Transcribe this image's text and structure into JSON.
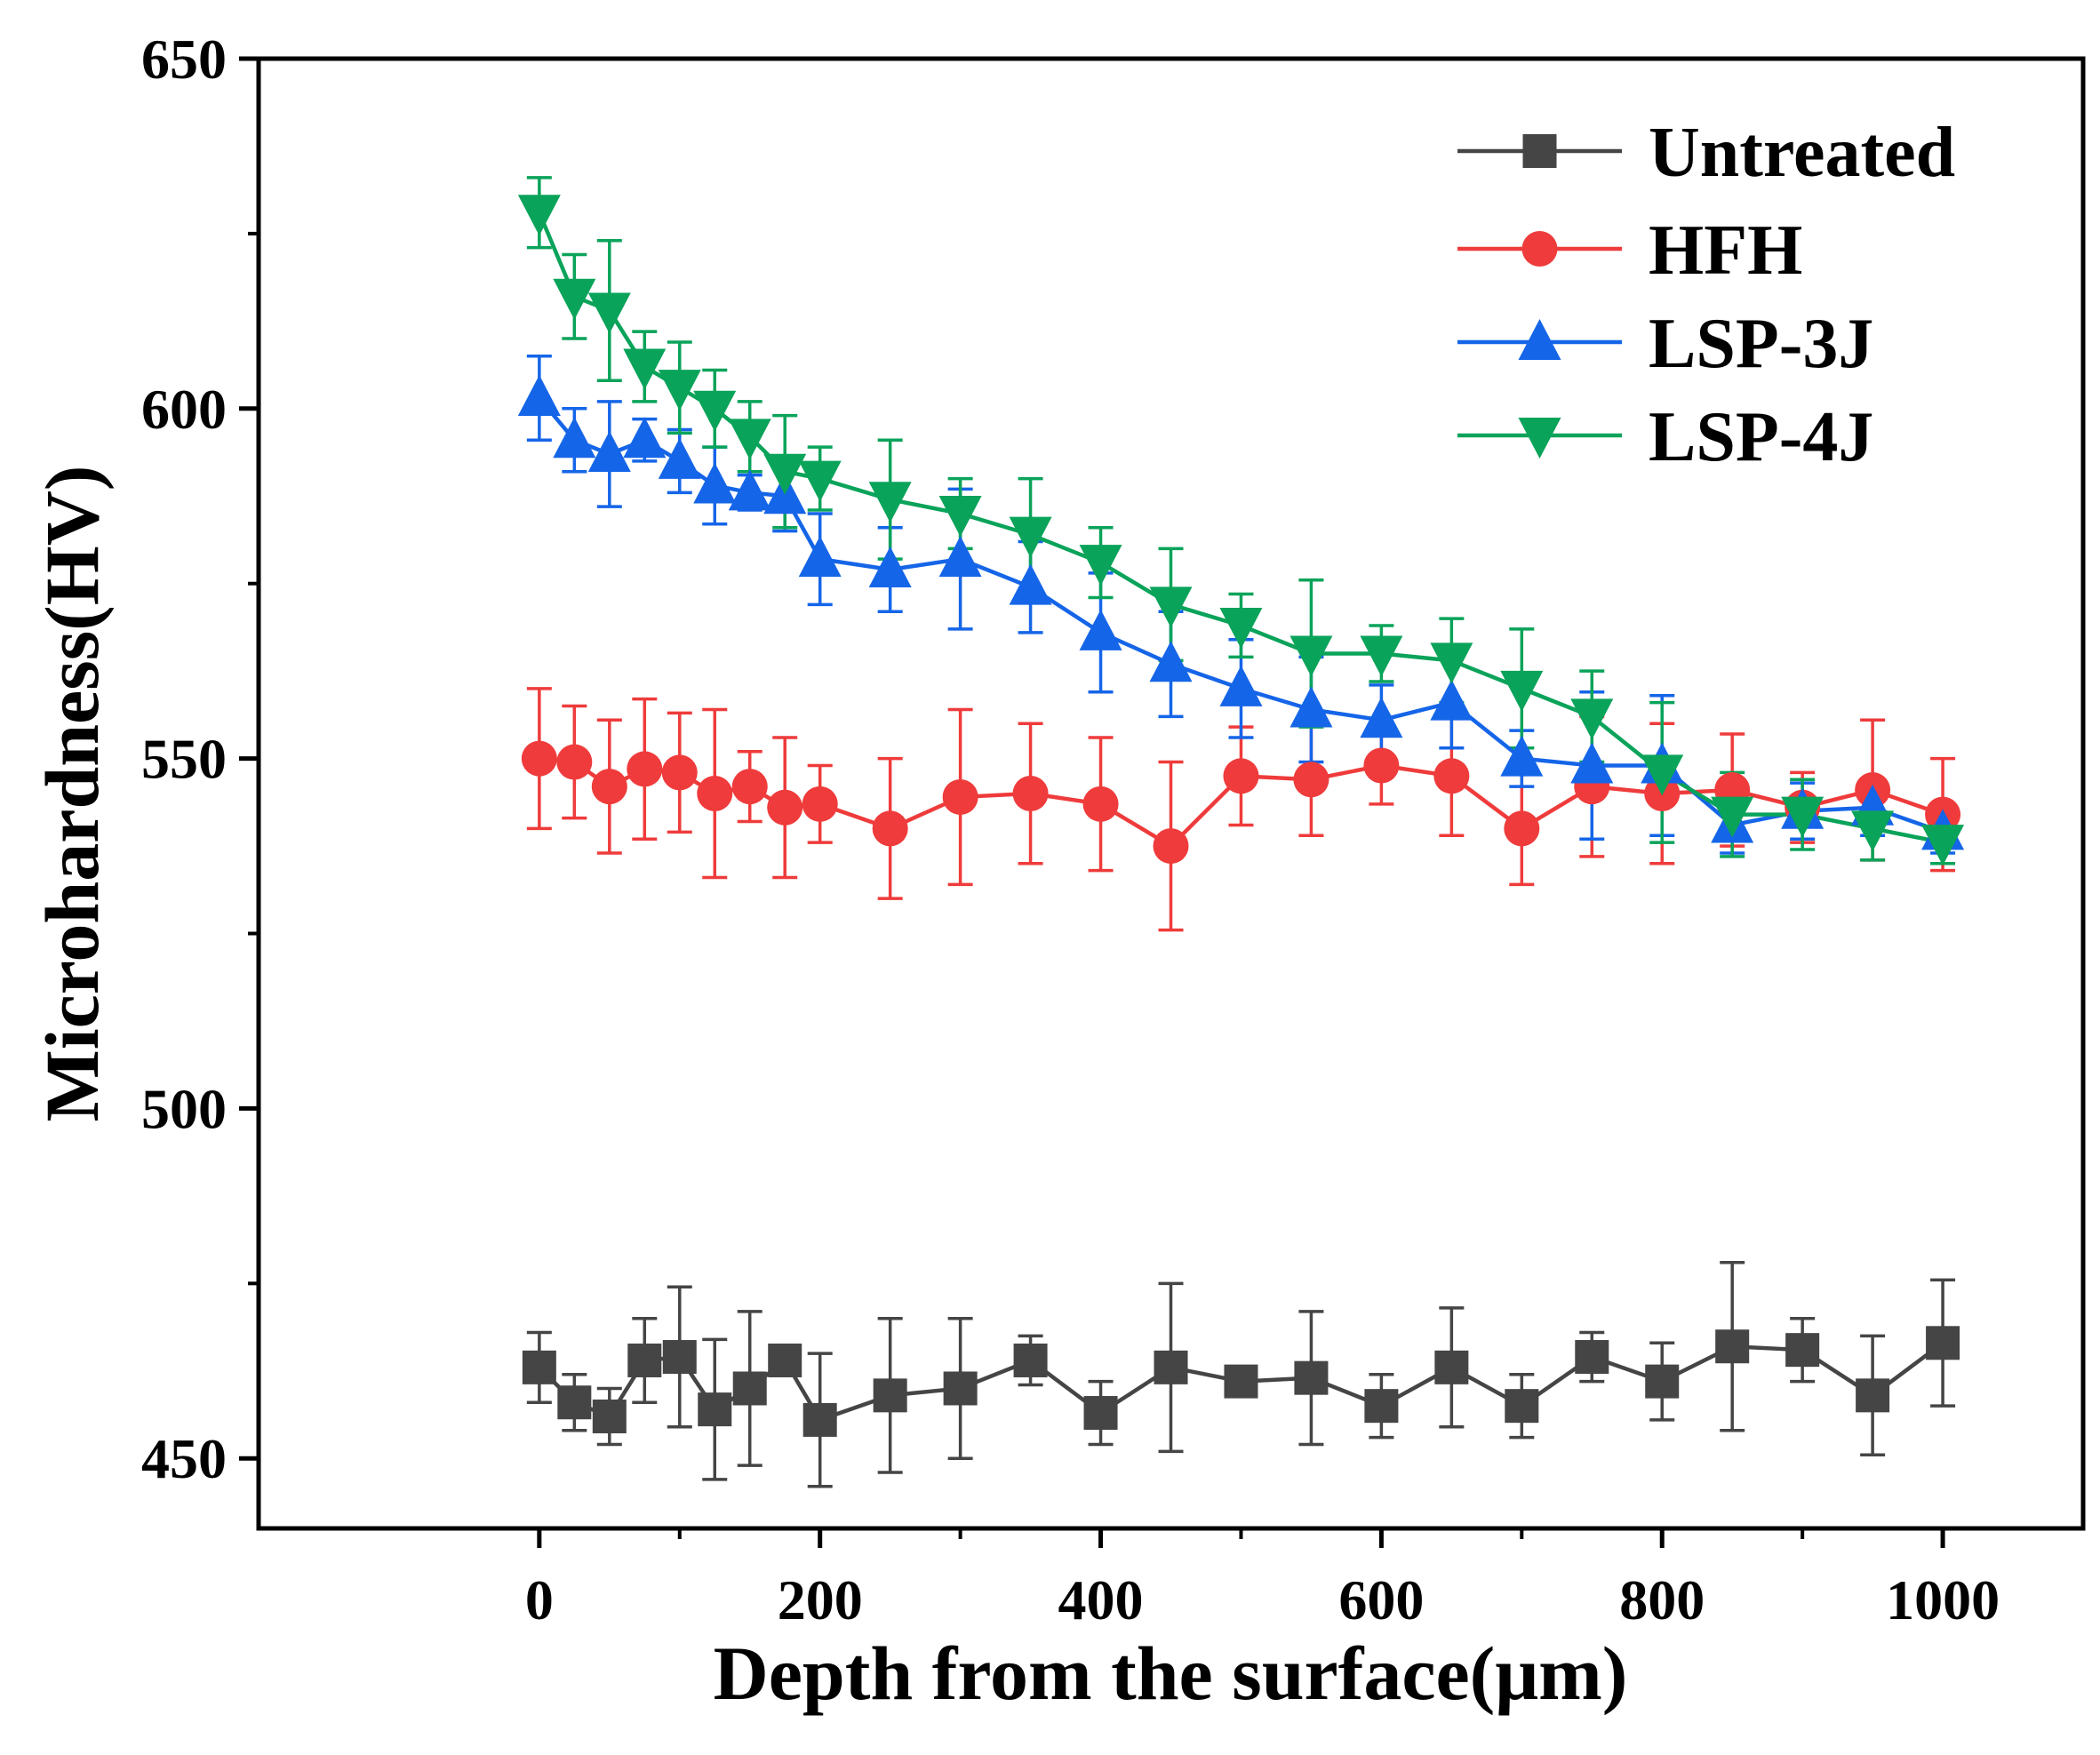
{
  "chart_data": {
    "type": "line",
    "title": "",
    "xlabel": "Depth from the surface(μm)",
    "ylabel": "Microhardness(HV)",
    "xlim": [
      -200,
      1100
    ],
    "ylim": [
      440,
      650
    ],
    "xticks": [
      0,
      200,
      400,
      600,
      800,
      1000
    ],
    "yticks": [
      450,
      500,
      550,
      600,
      650
    ],
    "xtick_labels": [
      "0",
      "200",
      "400",
      "600",
      "800",
      "1000"
    ],
    "ytick_labels": [
      "450",
      "500",
      "550",
      "600",
      "650"
    ],
    "legend_position": "top-right",
    "grid": false,
    "x": [
      0,
      25,
      50,
      75,
      100,
      125,
      150,
      175,
      200,
      250,
      300,
      350,
      400,
      450,
      500,
      550,
      600,
      650,
      700,
      750,
      800,
      850,
      900,
      950,
      1000
    ],
    "series": [
      {
        "name": "Untreated",
        "color": "#454545",
        "marker": "square",
        "values": [
          463,
          458,
          456,
          464,
          464.5,
          457,
          460,
          464,
          455.5,
          459,
          460,
          464,
          456.5,
          463,
          461,
          461.5,
          457.5,
          463,
          457.5,
          464.5,
          461,
          466,
          465.5,
          459,
          466.5
        ],
        "errors": [
          5,
          4,
          4,
          6,
          10,
          10,
          11,
          0,
          9.5,
          11,
          10,
          3.5,
          4.5,
          12,
          1.5,
          9.5,
          4.5,
          8.5,
          4.5,
          3.5,
          5.5,
          12,
          4.5,
          8.5,
          9
        ]
      },
      {
        "name": "HFH",
        "color": "#ef3b3b",
        "marker": "circle",
        "values": [
          550,
          549.5,
          546,
          548.5,
          548,
          545,
          546,
          543,
          543.5,
          540,
          544.5,
          545,
          543.5,
          537.5,
          547.5,
          547,
          549,
          547.5,
          540,
          546,
          545,
          545.5,
          543,
          545.5,
          542
        ],
        "errors": [
          10,
          8,
          9.5,
          10,
          8.5,
          12,
          5,
          10,
          5.5,
          10,
          12.5,
          10,
          9.5,
          12,
          7,
          8,
          5.5,
          8.5,
          8,
          10,
          10,
          8,
          5,
          10,
          8
        ]
      },
      {
        "name": "LSP-3J",
        "color": "#1565e8",
        "marker": "triangle-up",
        "values": [
          601.5,
          595.5,
          593.5,
          595.5,
          592.5,
          589,
          588,
          587.5,
          578.5,
          577,
          578.5,
          574.5,
          568,
          563.5,
          560,
          557,
          555.5,
          558,
          550,
          549,
          549,
          540.5,
          542.5,
          543,
          539.5
        ],
        "errors": [
          6,
          4.5,
          7.5,
          3,
          4.5,
          5.5,
          2.5,
          5,
          6.5,
          6,
          10,
          6.5,
          8.5,
          7.5,
          7,
          7.5,
          5,
          6.5,
          4,
          10.5,
          10,
          4,
          4,
          4,
          3
        ]
      },
      {
        "name": "LSP-4J",
        "color": "#0aa35a",
        "marker": "triangle-down",
        "values": [
          628,
          616,
          614,
          606,
          603,
          600,
          596,
          591,
          590,
          587,
          585,
          582,
          578,
          572,
          569,
          565,
          565,
          564,
          560,
          556,
          548,
          542,
          542,
          540,
          538
        ],
        "errors": [
          5,
          6,
          10,
          5,
          6.5,
          5.5,
          5,
          8,
          4.5,
          8.5,
          5,
          8,
          5,
          8,
          4.5,
          10.5,
          4,
          6,
          8.5,
          6.5,
          10,
          6,
          5,
          4.5,
          3
        ]
      }
    ]
  }
}
